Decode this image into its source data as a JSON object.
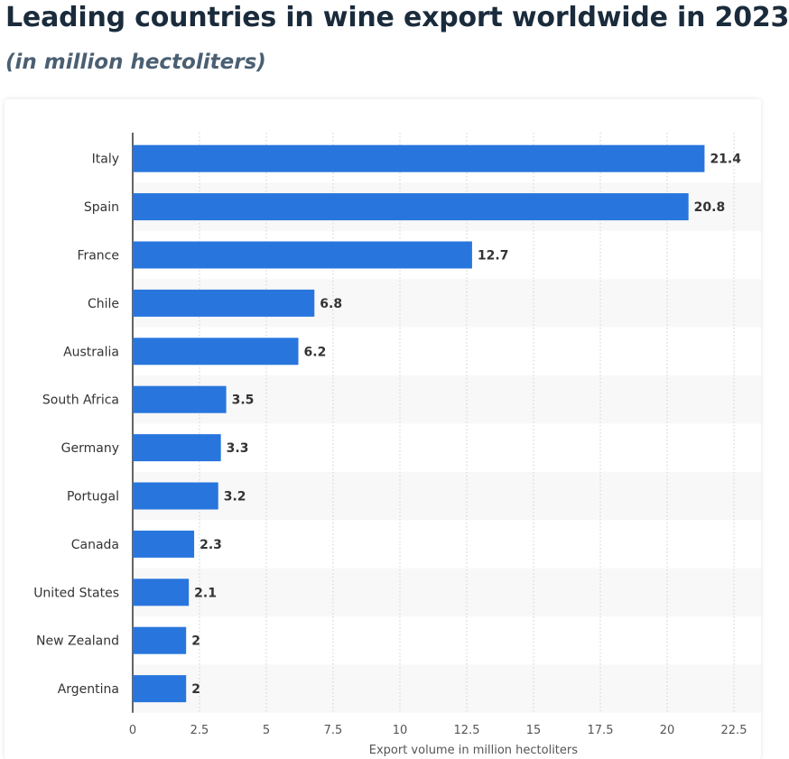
{
  "header": {
    "title": "Leading countries in wine export worldwide in 2023",
    "subtitle": "(in million hectoliters)"
  },
  "chart_data": {
    "type": "bar",
    "orientation": "horizontal",
    "title": "Leading countries in wine export worldwide in 2023",
    "subtitle": "(in million hectoliters)",
    "categories": [
      "Italy",
      "Spain",
      "France",
      "Chile",
      "Australia",
      "South Africa",
      "Germany",
      "Portugal",
      "Canada",
      "United States",
      "New Zealand",
      "Argentina"
    ],
    "values": [
      21.4,
      20.8,
      12.7,
      6.8,
      6.2,
      3.5,
      3.3,
      3.2,
      2.3,
      2.1,
      2,
      2
    ],
    "value_labels": [
      "21.4",
      "20.8",
      "12.7",
      "6.8",
      "6.2",
      "3.5",
      "3.3",
      "3.2",
      "2.3",
      "2.1",
      "2",
      "2"
    ],
    "xlabel": "Export volume in million hectoliters",
    "ylabel": "",
    "xlim": [
      0,
      23.5
    ],
    "xticks": [
      0,
      2.5,
      5,
      7.5,
      10,
      12.5,
      15,
      17.5,
      20,
      22.5
    ],
    "xtick_labels": [
      "0",
      "2.5",
      "5",
      "7.5",
      "10",
      "12.5",
      "15",
      "17.5",
      "20",
      "22.5"
    ],
    "grid": "vertical dotted",
    "legend": "none",
    "colors": {
      "bar": "#2876dd",
      "alt_row": "#f8f8f8",
      "grid": "#cfcfcf",
      "text": "#333333",
      "axis": "#111111"
    }
  }
}
